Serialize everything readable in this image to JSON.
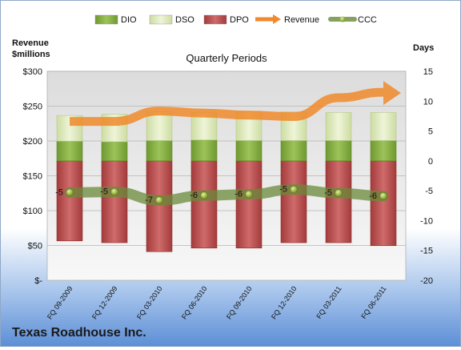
{
  "chart_data": {
    "type": "bar",
    "subtitle": "Quarterly Periods",
    "company": "Texas Roadhouse Inc.",
    "left_axis_title": [
      "Revenue",
      "$millions"
    ],
    "right_axis_title": "Days",
    "categories": [
      "FQ 09-2009",
      "FQ 12-2009",
      "FQ 03-2010",
      "FQ 06-2010",
      "FQ 09-2010",
      "FQ 12-2010",
      "FQ 03-2011",
      "FQ 06-2011"
    ],
    "left_axis": {
      "min": 0,
      "max": 300,
      "step": 50,
      "tick_labels": [
        "$-",
        "$50",
        "$100",
        "$150",
        "$200",
        "$250",
        "$300"
      ]
    },
    "right_axis": {
      "min": -20,
      "max": 15,
      "step": 5,
      "tick_labels": [
        "-20",
        "-15",
        "-10",
        "-5",
        "0",
        "5",
        "10",
        "15"
      ]
    },
    "legend_position": "top",
    "series": [
      {
        "name": "DIO",
        "kind": "stacked-bar",
        "axis": "right",
        "color": "#8db34a",
        "values": [
          3.3,
          3.2,
          3.4,
          3.5,
          3.4,
          3.4,
          3.4,
          3.4
        ]
      },
      {
        "name": "DSO",
        "kind": "stacked-bar",
        "axis": "right",
        "color": "#dde9bd",
        "values": [
          4.3,
          4.6,
          4.8,
          4.6,
          4.8,
          4.8,
          4.7,
          4.7
        ]
      },
      {
        "name": "DPO",
        "kind": "negative-bar",
        "axis": "right",
        "color": "#b94f4f",
        "values": [
          -13.4,
          -13.7,
          -15.2,
          -14.6,
          -14.6,
          -13.7,
          -13.7,
          -14.2
        ]
      },
      {
        "name": "Revenue",
        "kind": "line-arrow",
        "axis": "left",
        "color": "#f08a2c",
        "values": [
          228,
          228,
          243,
          240,
          237,
          235,
          262,
          270
        ]
      },
      {
        "name": "CCC",
        "kind": "line-markers",
        "axis": "right",
        "color": "#6a8a3a",
        "values": [
          -5.3,
          -5.2,
          -6.6,
          -5.8,
          -5.6,
          -4.8,
          -5.4,
          -5.9
        ],
        "data_labels": [
          "-5",
          "-5",
          "-7",
          "-6",
          "-6",
          "-5",
          "-5",
          "-6"
        ]
      }
    ]
  }
}
